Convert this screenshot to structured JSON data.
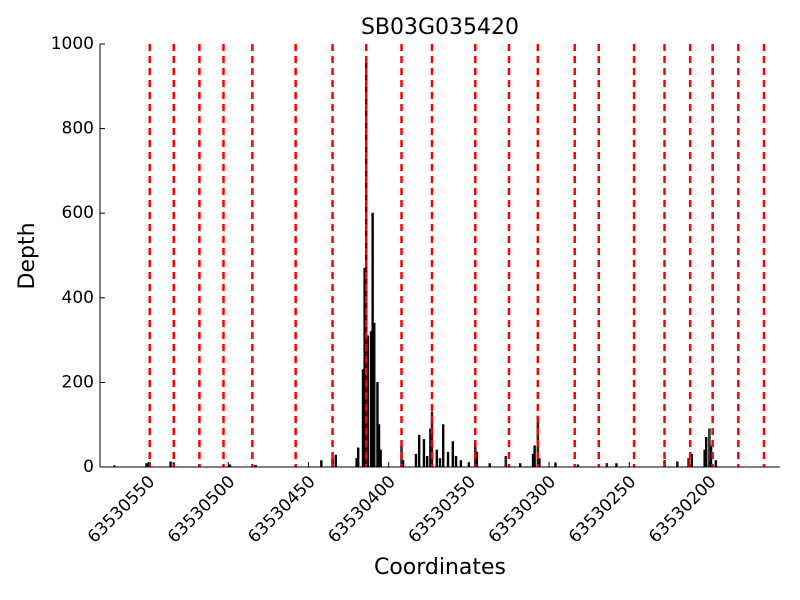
{
  "chart_data": {
    "type": "bar",
    "title": "SB03G035420",
    "x_label": "Coordinates",
    "y_label": "Depth",
    "x": [
      63530571,
      63530551,
      63530549,
      63530536,
      63530534,
      63530518,
      63530499,
      63530483,
      63530458,
      63530442,
      63530435,
      63530433,
      63530420,
      63530419,
      63530416,
      63530415,
      63530414,
      63530413,
      63530411,
      63530410,
      63530409,
      63530407,
      63530406,
      63530405,
      63530392,
      63530391,
      63530383,
      63530381,
      63530378,
      63530376,
      63530374,
      63530373,
      63530370,
      63530368,
      63530366,
      63530363,
      63530360,
      63530358,
      63530355,
      63530350,
      63530346,
      63530345,
      63530337,
      63530327,
      63530318,
      63530310,
      63530309,
      63530307,
      63530306,
      63530296,
      63530282,
      63530264,
      63530258,
      63530228,
      63530220,
      63530213,
      63530211,
      63530203,
      63530202,
      63530200,
      63530199,
      63530196
    ],
    "values": [
      3,
      8,
      10,
      12,
      10,
      6,
      5,
      4,
      3,
      15,
      20,
      28,
      20,
      45,
      230,
      470,
      960,
      310,
      320,
      600,
      340,
      200,
      100,
      40,
      50,
      15,
      30,
      75,
      65,
      25,
      90,
      130,
      40,
      20,
      100,
      35,
      60,
      25,
      15,
      10,
      60,
      35,
      8,
      25,
      8,
      30,
      50,
      120,
      20,
      10,
      5,
      8,
      8,
      15,
      12,
      20,
      30,
      40,
      70,
      90,
      50,
      15
    ],
    "colors": [
      "#000000",
      "#000000",
      "#ff0000",
      "#000000",
      "#ff0000",
      "#ff0000",
      "#000000",
      "#ff0000",
      "#ff0000",
      "#000000",
      "#ff0000",
      "#000000",
      "#000000",
      "#000000",
      "#000000",
      "#000000",
      "#ff0000",
      "#000000",
      "#000000",
      "#000000",
      "#000000",
      "#000000",
      "#000000",
      "#000000",
      "#ff0000",
      "#000000",
      "#000000",
      "#000000",
      "#000000",
      "#000000",
      "#000000",
      "#ff0000",
      "#000000",
      "#000000",
      "#000000",
      "#000000",
      "#000000",
      "#000000",
      "#000000",
      "#000000",
      "#ff0000",
      "#000000",
      "#000000",
      "#ff0000",
      "#000000",
      "#000000",
      "#000000",
      "#ff0000",
      "#000000",
      "#000000",
      "#ff0000",
      "#ff0000",
      "#000000",
      "#ff0000",
      "#000000",
      "#ff0000",
      "#000000",
      "#000000",
      "#000000",
      "#ff0000",
      "#000000",
      "#000000"
    ],
    "vlines": [
      63530549,
      63530534,
      63530518,
      63530503,
      63530485,
      63530458,
      63530435,
      63530414,
      63530392,
      63530373,
      63530346,
      63530325,
      63530307,
      63530284,
      63530269,
      63530247,
      63530228,
      63530212,
      63530198,
      63530182,
      63530166
    ],
    "vline_color": "#ff0000",
    "xlim": [
      63530580,
      63530156
    ],
    "xticks": [
      63530550,
      63530500,
      63530450,
      63530400,
      63530350,
      63530300,
      63530250,
      63530200
    ],
    "ylim": [
      0,
      1000
    ],
    "yticks": [
      0,
      200,
      400,
      600,
      800,
      1000
    ]
  }
}
